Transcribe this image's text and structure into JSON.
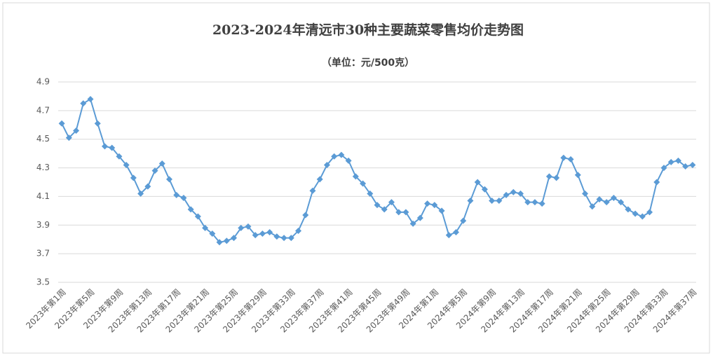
{
  "chart_data": {
    "type": "line",
    "title": "2023-2024年清远市30种主要蔬菜零售均价走势图",
    "subtitle": "（单位：元/500克）",
    "categories": [
      "2023年第1周",
      null,
      null,
      null,
      "2023年第5周",
      null,
      null,
      null,
      "2023年第9周",
      null,
      null,
      null,
      "2023年第13周",
      null,
      null,
      null,
      "2023年第17周",
      null,
      null,
      null,
      "2023年第21周",
      null,
      null,
      null,
      "2023年第25周",
      null,
      null,
      null,
      "2023年第29周",
      null,
      null,
      null,
      "2023年第33周",
      null,
      null,
      null,
      "2023年第37周",
      null,
      null,
      null,
      "2023年第41周",
      null,
      null,
      null,
      "2023年第45周",
      null,
      null,
      null,
      "2023年第49周",
      null,
      null,
      null,
      "2024年第1周",
      null,
      null,
      null,
      "2024年第5周",
      null,
      null,
      null,
      "2024年第9周",
      null,
      null,
      null,
      "2024年第13周",
      null,
      null,
      null,
      "2024年第17周",
      null,
      null,
      null,
      "2024年第21周",
      null,
      null,
      null,
      "2024年第25周",
      null,
      null,
      null,
      "2024年第29周",
      null,
      null,
      null,
      "2024年第33周",
      null,
      null,
      null,
      "2024年第37周"
    ],
    "values": [
      4.61,
      4.51,
      4.56,
      4.75,
      4.78,
      4.61,
      4.45,
      4.44,
      4.38,
      4.32,
      4.23,
      4.12,
      4.17,
      4.28,
      4.33,
      4.22,
      4.11,
      4.09,
      4.01,
      3.96,
      3.88,
      3.84,
      3.78,
      3.79,
      3.81,
      3.88,
      3.89,
      3.83,
      3.84,
      3.85,
      3.82,
      3.81,
      3.81,
      3.86,
      3.97,
      4.14,
      4.22,
      4.32,
      4.38,
      4.39,
      4.35,
      4.24,
      4.19,
      4.12,
      4.04,
      4.01,
      4.06,
      3.99,
      3.99,
      3.91,
      3.95,
      4.05,
      4.04,
      4.0,
      3.83,
      3.85,
      3.93,
      4.07,
      4.2,
      4.15,
      4.07,
      4.07,
      4.11,
      4.13,
      4.12,
      4.06,
      4.06,
      4.05,
      4.24,
      4.23,
      4.37,
      4.36,
      4.25,
      4.12,
      4.03,
      4.08,
      4.06,
      4.09,
      4.06,
      4.01,
      3.98,
      3.96,
      3.99,
      4.2,
      4.3,
      4.34,
      4.35,
      4.31,
      4.32
    ],
    "color": "#5b9bd5",
    "ylim": [
      3.5,
      4.9
    ],
    "yticks": [
      3.5,
      3.7,
      3.9,
      4.1,
      4.3,
      4.5,
      4.7,
      4.9
    ],
    "grid": true
  }
}
